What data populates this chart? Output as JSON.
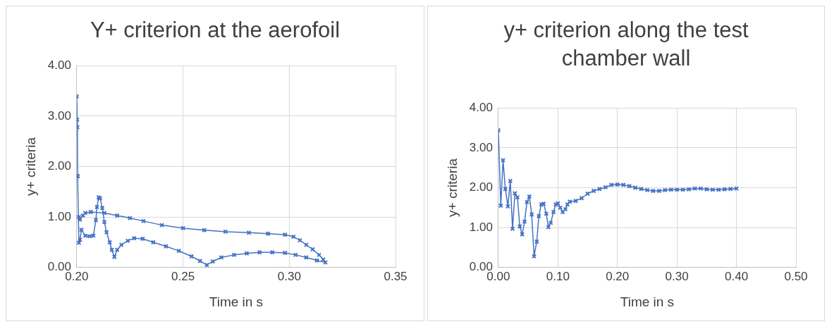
{
  "chart_data": [
    {
      "type": "line",
      "title": "Y+ criterion at the aerofoil",
      "xlabel": "Time in s",
      "ylabel": "y+ criteria",
      "xlim": [
        0.2,
        0.35
      ],
      "xticks": [
        {
          "value": 0.2,
          "label": "0.20"
        },
        {
          "value": 0.25,
          "label": "0.25"
        },
        {
          "value": 0.3,
          "label": "0.30"
        },
        {
          "value": 0.35,
          "label": "0.35"
        }
      ],
      "ylim": [
        0,
        4
      ],
      "yticks": [
        {
          "value": 0,
          "label": "0.00"
        },
        {
          "value": 1,
          "label": "1.00"
        },
        {
          "value": 2,
          "label": "2.00"
        },
        {
          "value": 3,
          "label": "3.00"
        },
        {
          "value": 4,
          "label": "4.00"
        }
      ],
      "grid": true,
      "legend": false,
      "marker": "cross",
      "line_style": "solid",
      "series": [
        {
          "color": "#4472c4",
          "x": [
            0.2,
            0.2002,
            0.2003,
            0.2004,
            0.2005,
            0.201,
            0.2015,
            0.2022,
            0.204,
            0.206,
            0.2078,
            0.209,
            0.2095,
            0.2103,
            0.211,
            0.212,
            0.213,
            0.214,
            0.2155,
            0.2165,
            0.2177,
            0.219,
            0.221,
            0.224,
            0.227,
            0.231,
            0.236,
            0.242,
            0.248,
            0.254,
            0.258,
            0.2612,
            0.264,
            0.268,
            0.274,
            0.28,
            0.286,
            0.292,
            0.298,
            0.303,
            0.308,
            0.313,
            0.317,
            0.316,
            0.314,
            0.311,
            0.308,
            0.305,
            0.302,
            0.298,
            0.29,
            0.281,
            0.27,
            0.26,
            0.25,
            0.24,
            0.2314,
            0.225,
            0.219,
            0.213,
            0.2066,
            0.204,
            0.2029,
            0.2015,
            0.201
          ],
          "values": [
            3.39,
            2.93,
            2.78,
            1.81,
            1.81,
            0.49,
            0.55,
            0.75,
            0.63,
            0.62,
            0.63,
            0.94,
            1.2,
            1.39,
            1.37,
            1.18,
            0.9,
            0.7,
            0.5,
            0.35,
            0.21,
            0.35,
            0.45,
            0.53,
            0.58,
            0.57,
            0.5,
            0.42,
            0.33,
            0.22,
            0.13,
            0.05,
            0.12,
            0.2,
            0.25,
            0.28,
            0.3,
            0.3,
            0.29,
            0.25,
            0.2,
            0.14,
            0.1,
            0.16,
            0.25,
            0.36,
            0.45,
            0.54,
            0.61,
            0.65,
            0.67,
            0.69,
            0.71,
            0.74,
            0.78,
            0.84,
            0.92,
            0.98,
            1.03,
            1.08,
            1.1,
            1.08,
            1.03,
            0.95,
            1.0
          ]
        }
      ]
    },
    {
      "type": "line",
      "title": "y+ criterion along the test chamber wall",
      "xlabel": "Time in s",
      "ylabel": "y+ criteria",
      "xlim": [
        0,
        0.5
      ],
      "xticks": [
        {
          "value": 0,
          "label": "0.00"
        },
        {
          "value": 0.1,
          "label": "0.10"
        },
        {
          "value": 0.2,
          "label": "0.20"
        },
        {
          "value": 0.3,
          "label": "0.30"
        },
        {
          "value": 0.4,
          "label": "0.40"
        },
        {
          "value": 0.5,
          "label": "0.50"
        }
      ],
      "ylim": [
        0,
        4
      ],
      "yticks": [
        {
          "value": 0,
          "label": "0.00"
        },
        {
          "value": 1,
          "label": "1.00"
        },
        {
          "value": 2,
          "label": "2.00"
        },
        {
          "value": 3,
          "label": "3.00"
        },
        {
          "value": 4,
          "label": "4.00"
        }
      ],
      "grid": true,
      "legend": false,
      "marker": "cross",
      "line_style": "solid",
      "series": [
        {
          "color": "#4472c4",
          "x": [
            0,
            0.004,
            0.0078,
            0.0117,
            0.016,
            0.02,
            0.0238,
            0.0277,
            0.032,
            0.036,
            0.04,
            0.044,
            0.048,
            0.052,
            0.056,
            0.06,
            0.0645,
            0.068,
            0.072,
            0.076,
            0.0805,
            0.084,
            0.088,
            0.0926,
            0.0965,
            0.1,
            0.104,
            0.108,
            0.1126,
            0.116,
            0.12,
            0.13,
            0.14,
            0.15,
            0.16,
            0.17,
            0.18,
            0.19,
            0.2,
            0.21,
            0.22,
            0.23,
            0.24,
            0.25,
            0.26,
            0.27,
            0.28,
            0.29,
            0.3,
            0.31,
            0.32,
            0.33,
            0.34,
            0.35,
            0.36,
            0.37,
            0.38,
            0.39,
            0.4
          ],
          "values": [
            3.44,
            1.55,
            2.69,
            1.97,
            1.53,
            2.17,
            0.97,
            1.86,
            1.76,
            1.03,
            0.83,
            1.15,
            1.64,
            1.78,
            1.33,
            0.28,
            0.65,
            1.29,
            1.58,
            1.6,
            1.35,
            1.01,
            1.12,
            1.39,
            1.58,
            1.61,
            1.5,
            1.39,
            1.46,
            1.58,
            1.65,
            1.67,
            1.74,
            1.85,
            1.92,
            1.97,
            2.01,
            2.07,
            2.08,
            2.07,
            2.04,
            2.0,
            1.97,
            1.94,
            1.92,
            1.92,
            1.94,
            1.95,
            1.95,
            1.95,
            1.96,
            1.98,
            1.98,
            1.96,
            1.95,
            1.95,
            1.96,
            1.97,
            1.98
          ]
        }
      ]
    }
  ]
}
